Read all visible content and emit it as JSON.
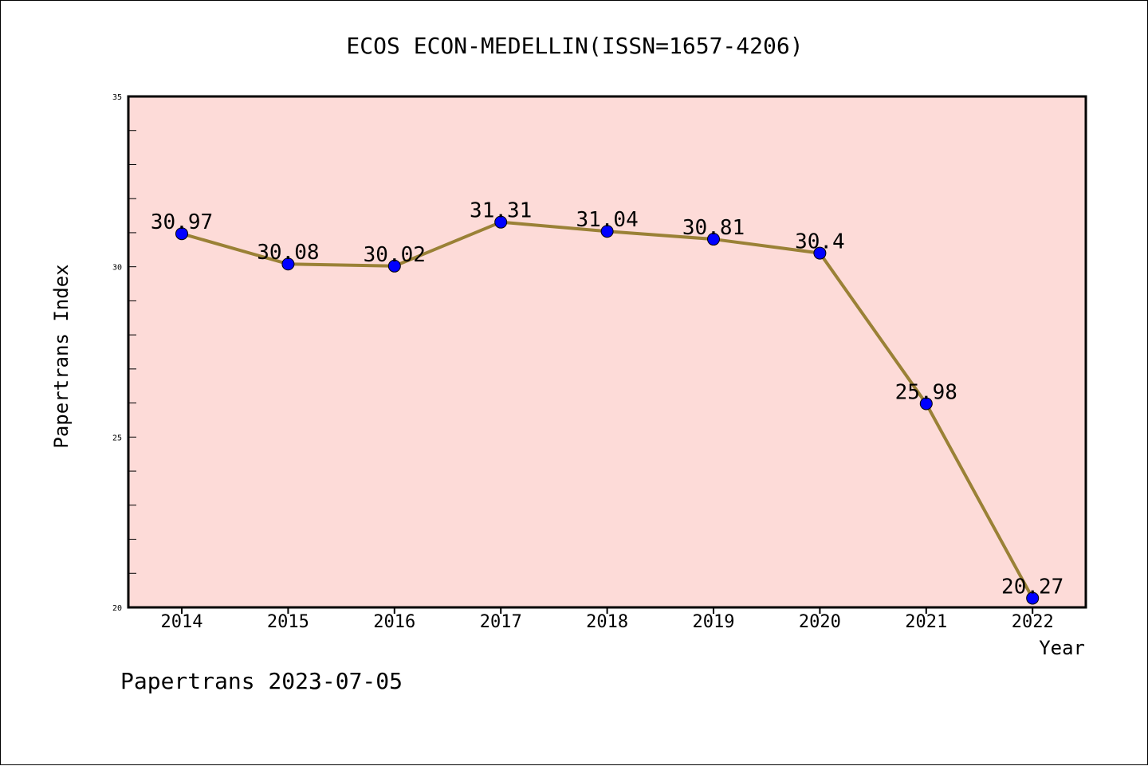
{
  "chart_data": {
    "type": "line",
    "title": "ECOS ECON-MEDELLIN(ISSN=1657-4206)",
    "xlabel": "Year",
    "ylabel": "Papertrans Index",
    "x": [
      "2014",
      "2015",
      "2016",
      "2017",
      "2018",
      "2019",
      "2020",
      "2021",
      "2022"
    ],
    "series": [
      {
        "values": [
          30.97,
          30.08,
          30.02,
          31.31,
          31.04,
          30.81,
          30.4,
          25.98,
          20.27
        ],
        "labels": [
          "30.97",
          "30.08",
          "30.02",
          "31.31",
          "31.04",
          "30.81",
          "30.4",
          "25.98",
          "20.27"
        ],
        "line_color": "#9a8136",
        "marker_color": "#0000ff"
      }
    ],
    "ylim": [
      20,
      35
    ],
    "y_ticks": [
      "20",
      "25",
      "30",
      "35"
    ],
    "grid": false,
    "plot_background": "#fddbd8"
  },
  "footer": {
    "text": "Papertrans 2023-07-05"
  }
}
